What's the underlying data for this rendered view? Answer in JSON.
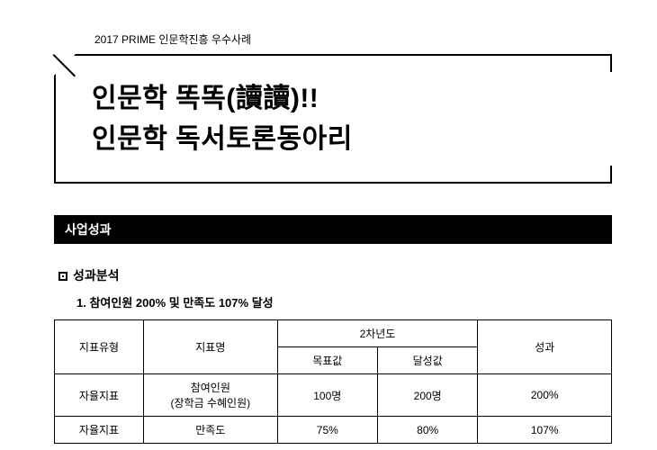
{
  "caption": "2017 PRIME 인문학진흥 우수사례",
  "title": {
    "line1": "인문학 똑똑(讀讀)!!",
    "line2": "인문학 독서토론동아리"
  },
  "section_bar": "사업성과",
  "analysis_heading": "성과분석",
  "analysis_item1": "1. 참여인원 200% 및 만족도 107% 달성",
  "table": {
    "headers": {
      "type": "지표유형",
      "name": "지표명",
      "year2": "2차년도",
      "target": "목표값",
      "actual": "달성값",
      "result": "성과"
    },
    "rows": [
      {
        "type": "자율지표",
        "name": "참여인원\n(장학금 수혜인원)",
        "target": "100명",
        "actual": "200명",
        "result": "200%"
      },
      {
        "type": "자율지표",
        "name": "만족도",
        "target": "75%",
        "actual": "80%",
        "result": "107%"
      }
    ]
  },
  "colors": {
    "text": "#000000",
    "bg": "#ffffff",
    "bar_bg": "#000000",
    "bar_text": "#ffffff",
    "border": "#000000"
  }
}
